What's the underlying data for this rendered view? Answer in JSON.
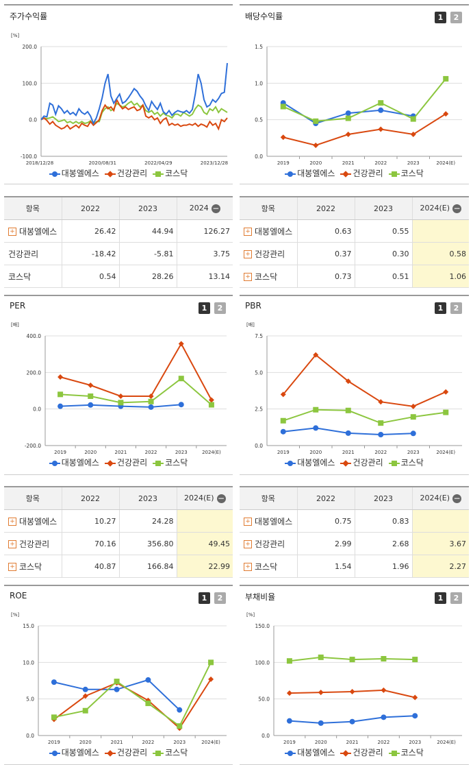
{
  "colors": {
    "daebong": "#2e6fd9",
    "health": "#d9480f",
    "kosdaq": "#8cc63f"
  },
  "series_names": [
    "대봉엘에스",
    "건강관리",
    "코스닥"
  ],
  "tables": {
    "stock": {
      "header": [
        "항목",
        "2022",
        "2023",
        "2024"
      ],
      "rows": [
        {
          "name": "대봉엘에스",
          "plus": true,
          "vals": [
            "26.42",
            "44.94",
            "126.27"
          ]
        },
        {
          "name": "건강관리",
          "plus": false,
          "vals": [
            "-18.42",
            "-5.81",
            "3.75"
          ]
        },
        {
          "name": "코스닥",
          "plus": false,
          "vals": [
            "0.54",
            "28.26",
            "13.14"
          ]
        }
      ]
    },
    "div": {
      "header": [
        "항목",
        "2022",
        "2023",
        "2024(E)"
      ],
      "rows": [
        {
          "name": "대봉엘에스",
          "plus": true,
          "vals": [
            "0.63",
            "0.55",
            ""
          ]
        },
        {
          "name": "건강관리",
          "plus": true,
          "vals": [
            "0.37",
            "0.30",
            "0.58"
          ]
        },
        {
          "name": "코스닥",
          "plus": true,
          "vals": [
            "0.73",
            "0.51",
            "1.06"
          ]
        }
      ]
    },
    "per": {
      "header": [
        "항목",
        "2022",
        "2023",
        "2024(E)"
      ],
      "rows": [
        {
          "name": "대봉엘에스",
          "plus": true,
          "vals": [
            "10.27",
            "24.28",
            ""
          ]
        },
        {
          "name": "건강관리",
          "plus": true,
          "vals": [
            "70.16",
            "356.80",
            "49.45"
          ]
        },
        {
          "name": "코스닥",
          "plus": true,
          "vals": [
            "40.87",
            "166.84",
            "22.99"
          ]
        }
      ]
    },
    "pbr": {
      "header": [
        "항목",
        "2022",
        "2023",
        "2024(E)"
      ],
      "rows": [
        {
          "name": "대봉엘에스",
          "plus": true,
          "vals": [
            "0.75",
            "0.83",
            ""
          ]
        },
        {
          "name": "건강관리",
          "plus": true,
          "vals": [
            "2.99",
            "2.68",
            "3.67"
          ]
        },
        {
          "name": "코스닥",
          "plus": true,
          "vals": [
            "1.54",
            "1.96",
            "2.27"
          ]
        }
      ]
    }
  },
  "chart_data": [
    {
      "id": "stock",
      "type": "line",
      "title": "주가수익률",
      "unit": "[%]",
      "ylim": [
        -100,
        200
      ],
      "yticks": [
        "-100.0",
        "0.0",
        "100.0",
        "200.0"
      ],
      "xlabels": [
        "2018/12/28",
        "2020/08/31",
        "2022/04/29",
        "2023/12/28"
      ],
      "series": [
        {
          "name": "대봉엘에스",
          "values": [
            0,
            10,
            8,
            45,
            40,
            15,
            38,
            30,
            18,
            25,
            15,
            20,
            12,
            30,
            20,
            15,
            22,
            10,
            -10,
            5,
            30,
            60,
            100,
            125,
            65,
            45,
            58,
            70,
            45,
            50,
            60,
            72,
            85,
            78,
            65,
            55,
            38,
            25,
            50,
            38,
            28,
            45,
            22,
            15,
            25,
            12,
            20,
            25,
            22,
            20,
            25,
            18,
            28,
            70,
            125,
            100,
            55,
            35,
            40,
            55,
            48,
            58,
            72,
            75,
            155
          ]
        },
        {
          "name": "건강관리",
          "values": [
            0,
            5,
            -2,
            -12,
            -5,
            -15,
            -20,
            -25,
            -22,
            -15,
            -25,
            -20,
            -15,
            -22,
            -10,
            -15,
            -18,
            -5,
            -15,
            -8,
            0,
            25,
            40,
            30,
            35,
            25,
            55,
            40,
            30,
            35,
            28,
            32,
            35,
            25,
            28,
            40,
            10,
            5,
            10,
            0,
            5,
            -10,
            0,
            5,
            -15,
            -10,
            -15,
            -12,
            -18,
            -15,
            -15,
            -12,
            -15,
            -10,
            -18,
            -12,
            -15,
            -20,
            -5,
            -15,
            -10,
            -25,
            0,
            -5,
            5
          ]
        },
        {
          "name": "코스닥",
          "values": [
            0,
            5,
            3,
            5,
            8,
            2,
            -5,
            -3,
            0,
            -8,
            -5,
            -10,
            -5,
            -10,
            -5,
            -10,
            -8,
            -3,
            -12,
            -5,
            -5,
            20,
            30,
            35,
            25,
            30,
            45,
            40,
            35,
            38,
            45,
            50,
            40,
            45,
            35,
            40,
            25,
            20,
            25,
            15,
            20,
            10,
            18,
            12,
            10,
            5,
            15,
            15,
            10,
            20,
            15,
            10,
            15,
            30,
            40,
            35,
            20,
            15,
            30,
            25,
            35,
            20,
            30,
            25,
            20
          ]
        }
      ]
    },
    {
      "id": "div",
      "type": "line",
      "title": "배당수익률",
      "unit": "",
      "ylim": [
        0,
        1.5
      ],
      "yticks": [
        "0.0",
        "0.5",
        "1.0",
        "1.5"
      ],
      "categories": [
        "2019",
        "2020",
        "2021",
        "2022",
        "2023",
        "2024(E)"
      ],
      "series": [
        {
          "name": "대봉엘에스",
          "values": [
            0.73,
            0.45,
            0.59,
            0.63,
            0.55,
            null
          ]
        },
        {
          "name": "건강관리",
          "values": [
            0.26,
            0.15,
            0.3,
            0.37,
            0.3,
            0.58
          ]
        },
        {
          "name": "코스닥",
          "values": [
            0.68,
            0.48,
            0.52,
            0.73,
            0.51,
            1.06
          ]
        }
      ]
    },
    {
      "id": "per",
      "type": "line",
      "title": "PER",
      "unit": "[배]",
      "ylim": [
        -200,
        400
      ],
      "yticks": [
        "-200.0",
        "0.0",
        "200.0",
        "400.0"
      ],
      "categories": [
        "2019",
        "2020",
        "2021",
        "2022",
        "2023",
        "2024(E)"
      ],
      "series": [
        {
          "name": "대봉엘에스",
          "values": [
            15,
            22,
            15,
            10.27,
            24.28,
            null
          ]
        },
        {
          "name": "건강관리",
          "values": [
            175,
            130,
            70,
            70.16,
            356.8,
            49.45
          ]
        },
        {
          "name": "코스닥",
          "values": [
            80,
            70,
            35,
            40.87,
            166.84,
            22.99
          ]
        }
      ]
    },
    {
      "id": "pbr",
      "type": "line",
      "title": "PBR",
      "unit": "[배]",
      "ylim": [
        0,
        7.5
      ],
      "yticks": [
        "0.0",
        "2.5",
        "5.0",
        "7.5"
      ],
      "categories": [
        "2019",
        "2020",
        "2021",
        "2022",
        "2023",
        "2024(E)"
      ],
      "series": [
        {
          "name": "대봉엘에스",
          "values": [
            0.95,
            1.2,
            0.85,
            0.75,
            0.83,
            null
          ]
        },
        {
          "name": "건강관리",
          "values": [
            3.5,
            6.2,
            4.4,
            2.99,
            2.68,
            3.67
          ]
        },
        {
          "name": "코스닥",
          "values": [
            1.7,
            2.45,
            2.4,
            1.54,
            1.96,
            2.27
          ]
        }
      ]
    },
    {
      "id": "roe",
      "type": "line",
      "title": "ROE",
      "unit": "[%]",
      "ylim": [
        0,
        15
      ],
      "yticks": [
        "0.0",
        "5.0",
        "10.0",
        "15.0"
      ],
      "categories": [
        "2019",
        "2020",
        "2021",
        "2022",
        "2023",
        "2024(E)"
      ],
      "series": [
        {
          "name": "대봉엘에스",
          "values": [
            7.3,
            6.3,
            6.3,
            7.6,
            3.5,
            null
          ]
        },
        {
          "name": "건강관리",
          "values": [
            2.2,
            5.4,
            7.2,
            4.8,
            1.0,
            7.7
          ]
        },
        {
          "name": "코스닥",
          "values": [
            2.5,
            3.4,
            7.4,
            4.4,
            1.3,
            10.0
          ]
        }
      ]
    },
    {
      "id": "debt",
      "type": "line",
      "title": "부채비율",
      "unit": "[%]",
      "ylim": [
        0,
        150
      ],
      "yticks": [
        "0.0",
        "50.0",
        "100.0",
        "150.0"
      ],
      "categories": [
        "2019",
        "2020",
        "2021",
        "2022",
        "2023",
        "2024(E)"
      ],
      "series": [
        {
          "name": "대봉엘에스",
          "values": [
            20,
            17,
            19,
            25,
            27,
            null
          ]
        },
        {
          "name": "건강관리",
          "values": [
            58,
            59,
            60,
            62,
            52,
            null
          ]
        },
        {
          "name": "코스닥",
          "values": [
            102,
            107,
            104,
            105,
            104,
            null
          ]
        }
      ]
    }
  ]
}
